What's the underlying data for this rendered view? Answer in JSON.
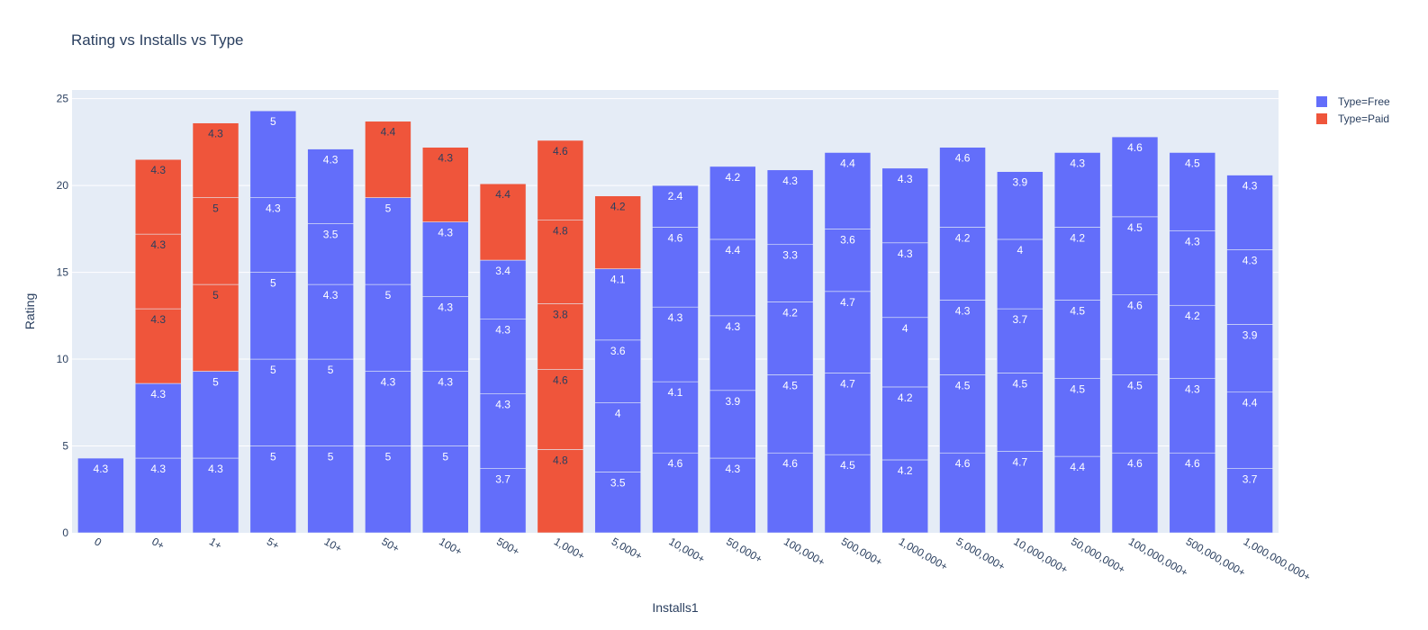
{
  "chart_data": {
    "type": "bar",
    "barmode": "stack",
    "title": "Rating vs Installs vs Type",
    "xlabel": "Installs1",
    "ylabel": "Rating",
    "ylim": [
      0,
      25.5
    ],
    "yticks": [
      0,
      5,
      10,
      15,
      20,
      25
    ],
    "grid": true,
    "legend_position": "top-right",
    "categories": [
      "0",
      "0+",
      "1+",
      "5+",
      "10+",
      "50+",
      "100+",
      "500+",
      "1,000+",
      "5,000+",
      "10,000+",
      "50,000+",
      "100,000+",
      "500,000+",
      "1,000,000+",
      "5,000,000+",
      "10,000,000+",
      "50,000,000+",
      "100,000,000+",
      "500,000,000+",
      "1,000,000,000+"
    ],
    "series": [
      {
        "name": "Type=Free",
        "color": "#636efa",
        "label_color": "#ffffff",
        "segments": [
          [
            4.3
          ],
          [
            4.3,
            4.3
          ],
          [
            4.3,
            5
          ],
          [
            5,
            5,
            5,
            4.3,
            5
          ],
          [
            5,
            5,
            4.3,
            3.5,
            4.3
          ],
          [
            5,
            4.3,
            5,
            5
          ],
          [
            5,
            4.3,
            4.3,
            4.3
          ],
          [
            3.7,
            4.3,
            4.3,
            3.4
          ],
          [],
          [
            3.5,
            4,
            3.6,
            4.1
          ],
          [
            4.6,
            4.1,
            4.3,
            4.6,
            2.4
          ],
          [
            4.3,
            3.9,
            4.3,
            4.4,
            4.2
          ],
          [
            4.6,
            4.5,
            4.2,
            3.3,
            4.3
          ],
          [
            4.5,
            4.7,
            4.7,
            3.6,
            4.4
          ],
          [
            4.2,
            4.2,
            4,
            4.3,
            4.3
          ],
          [
            4.6,
            4.5,
            4.3,
            4.2,
            4.6
          ],
          [
            4.7,
            4.5,
            3.7,
            4,
            3.9
          ],
          [
            4.4,
            4.5,
            4.5,
            4.2,
            4.3
          ],
          [
            4.6,
            4.5,
            4.6,
            4.5,
            4.6
          ],
          [
            4.6,
            4.3,
            4.2,
            4.3,
            4.5
          ],
          [
            3.7,
            4.4,
            3.9,
            4.3,
            4.3
          ]
        ]
      },
      {
        "name": "Type=Paid",
        "color": "#ef553b",
        "label_color": "#2a3f5f",
        "segments": [
          [],
          [
            4.3,
            4.3,
            4.3
          ],
          [
            5,
            5,
            4.3
          ],
          [],
          [],
          [
            4.4
          ],
          [
            4.3
          ],
          [
            4.4
          ],
          [
            4.8,
            4.6,
            3.8,
            4.8,
            4.6
          ],
          [
            4.2
          ],
          [],
          [],
          [],
          [],
          [],
          [],
          [],
          [],
          [],
          [],
          []
        ]
      }
    ]
  }
}
